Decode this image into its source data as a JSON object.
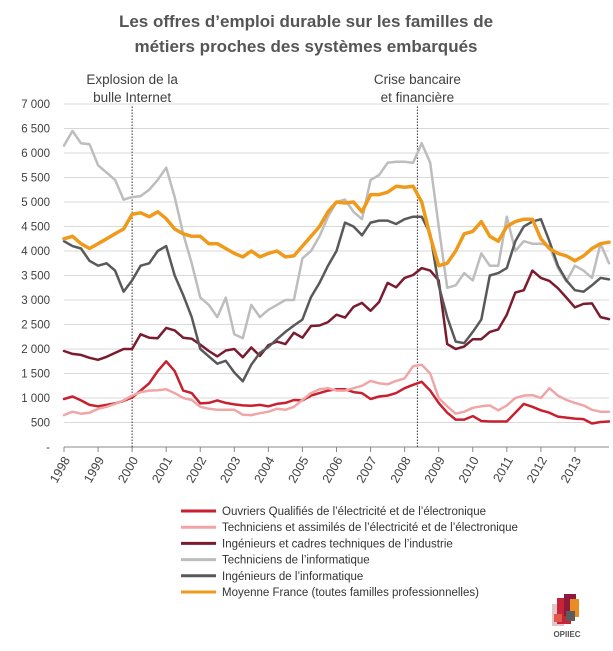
{
  "chart_data": {
    "type": "line",
    "title": [
      "Les offres d’emploi durable sur les familles de",
      "métiers proches des systèmes embarqués"
    ],
    "xlabel": "",
    "ylabel": "",
    "xlim": [
      1998.0,
      2014.0
    ],
    "ylim": [
      0,
      7000
    ],
    "yticks": [
      0,
      500,
      1000,
      1500,
      2000,
      2500,
      3000,
      3500,
      4000,
      4500,
      5000,
      5500,
      6000,
      6500,
      7000
    ],
    "ytick_labels": [
      "-",
      "500",
      "1 000",
      "1 500",
      "2 000",
      "2 500",
      "3 000",
      "3 500",
      "4 000",
      "4 500",
      "5 000",
      "5 500",
      "6 000",
      "6 500",
      "7 000"
    ],
    "xticks": [
      1998,
      1999,
      2000,
      2001,
      2002,
      2003,
      2004,
      2005,
      2006,
      2007,
      2008,
      2009,
      2010,
      2011,
      2012,
      2013
    ],
    "grid": "horizontal",
    "legend_position": "bottom",
    "x": [
      1998.0,
      1998.25,
      1998.5,
      1998.75,
      1999.0,
      1999.25,
      1999.5,
      1999.75,
      2000.0,
      2000.25,
      2000.5,
      2000.75,
      2001.0,
      2001.25,
      2001.5,
      2001.75,
      2002.0,
      2002.25,
      2002.5,
      2002.75,
      2003.0,
      2003.25,
      2003.5,
      2003.75,
      2004.0,
      2004.25,
      2004.5,
      2004.75,
      2005.0,
      2005.25,
      2005.5,
      2005.75,
      2006.0,
      2006.25,
      2006.5,
      2006.75,
      2007.0,
      2007.25,
      2007.5,
      2007.75,
      2008.0,
      2008.25,
      2008.5,
      2008.75,
      2009.0,
      2009.25,
      2009.5,
      2009.75,
      2010.0,
      2010.25,
      2010.5,
      2010.75,
      2011.0,
      2011.25,
      2011.5,
      2011.75,
      2012.0,
      2012.25,
      2012.5,
      2012.75,
      2013.0,
      2013.25,
      2013.5,
      2013.75,
      2014.0
    ],
    "series": [
      {
        "name": "Ouvriers Qualifiés de l’électricité et de l’électronique",
        "color": "#c8202f",
        "width": 2.5,
        "values": [
          980,
          1030,
          950,
          860,
          830,
          860,
          890,
          940,
          1010,
          1150,
          1300,
          1550,
          1750,
          1550,
          1150,
          1100,
          890,
          900,
          950,
          900,
          870,
          850,
          840,
          860,
          830,
          880,
          900,
          960,
          950,
          1050,
          1100,
          1150,
          1180,
          1180,
          1120,
          1100,
          980,
          1030,
          1050,
          1100,
          1200,
          1270,
          1330,
          1150,
          900,
          700,
          560,
          560,
          630,
          530,
          520,
          520,
          520,
          700,
          880,
          820,
          750,
          700,
          620,
          600,
          580,
          570,
          480,
          510,
          520
        ]
      },
      {
        "name": "Techniciens et assimilés de l’électricité et de l’électronique",
        "color": "#f0a6a6",
        "width": 2.5,
        "values": [
          650,
          720,
          680,
          700,
          780,
          820,
          880,
          950,
          1050,
          1120,
          1150,
          1160,
          1180,
          1100,
          1000,
          960,
          820,
          780,
          760,
          760,
          760,
          660,
          650,
          690,
          720,
          780,
          760,
          820,
          960,
          1100,
          1180,
          1200,
          1150,
          1150,
          1200,
          1250,
          1350,
          1300,
          1280,
          1350,
          1400,
          1650,
          1680,
          1500,
          1000,
          830,
          680,
          720,
          800,
          830,
          850,
          750,
          850,
          1000,
          1050,
          1060,
          1000,
          1200,
          1050,
          960,
          900,
          850,
          760,
          720,
          720
        ]
      },
      {
        "name": "Ingénieurs et cadres techniques de l’industrie",
        "color": "#7b1b30",
        "width": 2.5,
        "values": [
          1960,
          1900,
          1880,
          1820,
          1780,
          1840,
          1920,
          2000,
          2000,
          2300,
          2230,
          2220,
          2430,
          2380,
          2230,
          2210,
          2090,
          1960,
          1850,
          1970,
          2000,
          1830,
          2030,
          1860,
          2080,
          2150,
          2100,
          2330,
          2230,
          2470,
          2480,
          2550,
          2700,
          2640,
          2860,
          2940,
          2780,
          2960,
          3350,
          3260,
          3450,
          3510,
          3650,
          3600,
          3400,
          2100,
          2000,
          2050,
          2200,
          2200,
          2350,
          2400,
          2700,
          3150,
          3200,
          3600,
          3450,
          3390,
          3240,
          3050,
          2850,
          2920,
          2930,
          2650,
          2610
        ]
      },
      {
        "name": "Techniciens de l’informatique",
        "color": "#bdbdbd",
        "width": 2.5,
        "values": [
          6150,
          6450,
          6200,
          6180,
          5750,
          5600,
          5450,
          5050,
          5100,
          5120,
          5250,
          5450,
          5700,
          5100,
          4350,
          3750,
          3050,
          2900,
          2650,
          3050,
          2300,
          2220,
          2900,
          2650,
          2800,
          2900,
          3000,
          3000,
          3850,
          4000,
          4300,
          4700,
          5000,
          5050,
          4800,
          4650,
          5450,
          5550,
          5800,
          5820,
          5820,
          5800,
          6200,
          5800,
          4500,
          3250,
          3300,
          3550,
          3400,
          3950,
          3700,
          3700,
          4700,
          4000,
          4200,
          4150,
          4150,
          4100,
          3650,
          3380,
          3700,
          3600,
          3450,
          4150,
          3750
        ]
      },
      {
        "name": "Ingénieurs de l’informatique",
        "color": "#595959",
        "width": 2.5,
        "values": [
          4200,
          4100,
          4050,
          3800,
          3700,
          3750,
          3600,
          3170,
          3400,
          3700,
          3750,
          4000,
          4100,
          3500,
          3100,
          2650,
          2000,
          1850,
          1700,
          1760,
          1520,
          1340,
          1680,
          1920,
          2040,
          2200,
          2350,
          2480,
          2600,
          3060,
          3350,
          3700,
          4000,
          4580,
          4500,
          4320,
          4580,
          4620,
          4620,
          4550,
          4650,
          4700,
          4700,
          4350,
          3300,
          2650,
          2150,
          2120,
          2350,
          2600,
          3500,
          3550,
          3650,
          4200,
          4500,
          4600,
          4650,
          4200,
          3700,
          3400,
          3200,
          3170,
          3300,
          3450,
          3420
        ]
      },
      {
        "name": "Moyenne France (toutes familles professionnelles)",
        "color": "#ef9a1a",
        "width": 3.5,
        "values": [
          4250,
          4300,
          4150,
          4050,
          4150,
          4250,
          4350,
          4450,
          4750,
          4780,
          4700,
          4800,
          4660,
          4450,
          4350,
          4300,
          4300,
          4150,
          4150,
          4050,
          3950,
          3880,
          4000,
          3880,
          3950,
          4000,
          3880,
          3900,
          4100,
          4300,
          4500,
          4800,
          5000,
          4980,
          5000,
          4800,
          5150,
          5150,
          5200,
          5320,
          5300,
          5320,
          5000,
          4300,
          3700,
          3750,
          4000,
          4350,
          4400,
          4600,
          4300,
          4200,
          4500,
          4600,
          4650,
          4650,
          4250,
          4050,
          3950,
          3900,
          3800,
          3900,
          4050,
          4150,
          4180
        ]
      }
    ],
    "annotations": [
      {
        "x": 2000.0,
        "lines": [
          "Explosion de la",
          "bulle Internet"
        ]
      },
      {
        "x": 2008.375,
        "lines": [
          "Crise bancaire",
          "et financière"
        ]
      }
    ]
  },
  "logo": {
    "name": "OPIIEC",
    "colors": [
      "#e1c6c6",
      "#c7243a",
      "#8b1a3d",
      "#ea8c23",
      "#5c5c5c",
      "#e2574c"
    ]
  }
}
